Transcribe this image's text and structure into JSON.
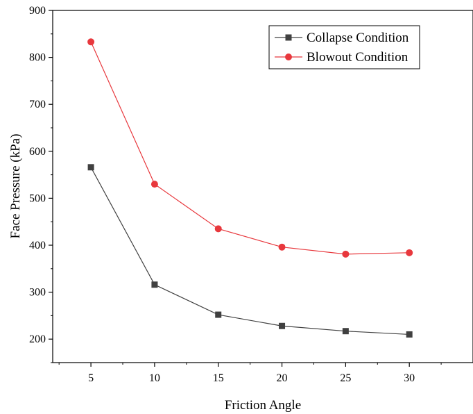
{
  "chart_data": {
    "type": "line",
    "title": "",
    "xlabel": "Friction Angle",
    "ylabel": "Face Pressure (kPa)",
    "xlim": [
      2,
      35
    ],
    "ylim": [
      150,
      900
    ],
    "x_ticks": [
      5,
      10,
      15,
      20,
      25,
      30
    ],
    "y_ticks": [
      200,
      300,
      400,
      500,
      600,
      700,
      800,
      900
    ],
    "x": [
      5,
      10,
      15,
      20,
      25,
      30
    ],
    "series": [
      {
        "name": "Collapse Condition",
        "color": "#404040",
        "marker": "square",
        "values": [
          566,
          316,
          252,
          228,
          217,
          210
        ]
      },
      {
        "name": "Blowout Condition",
        "color": "#e8383d",
        "marker": "circle",
        "values": [
          833,
          530,
          435,
          396,
          381,
          384
        ]
      }
    ],
    "legend": "top-right",
    "grid": false
  }
}
